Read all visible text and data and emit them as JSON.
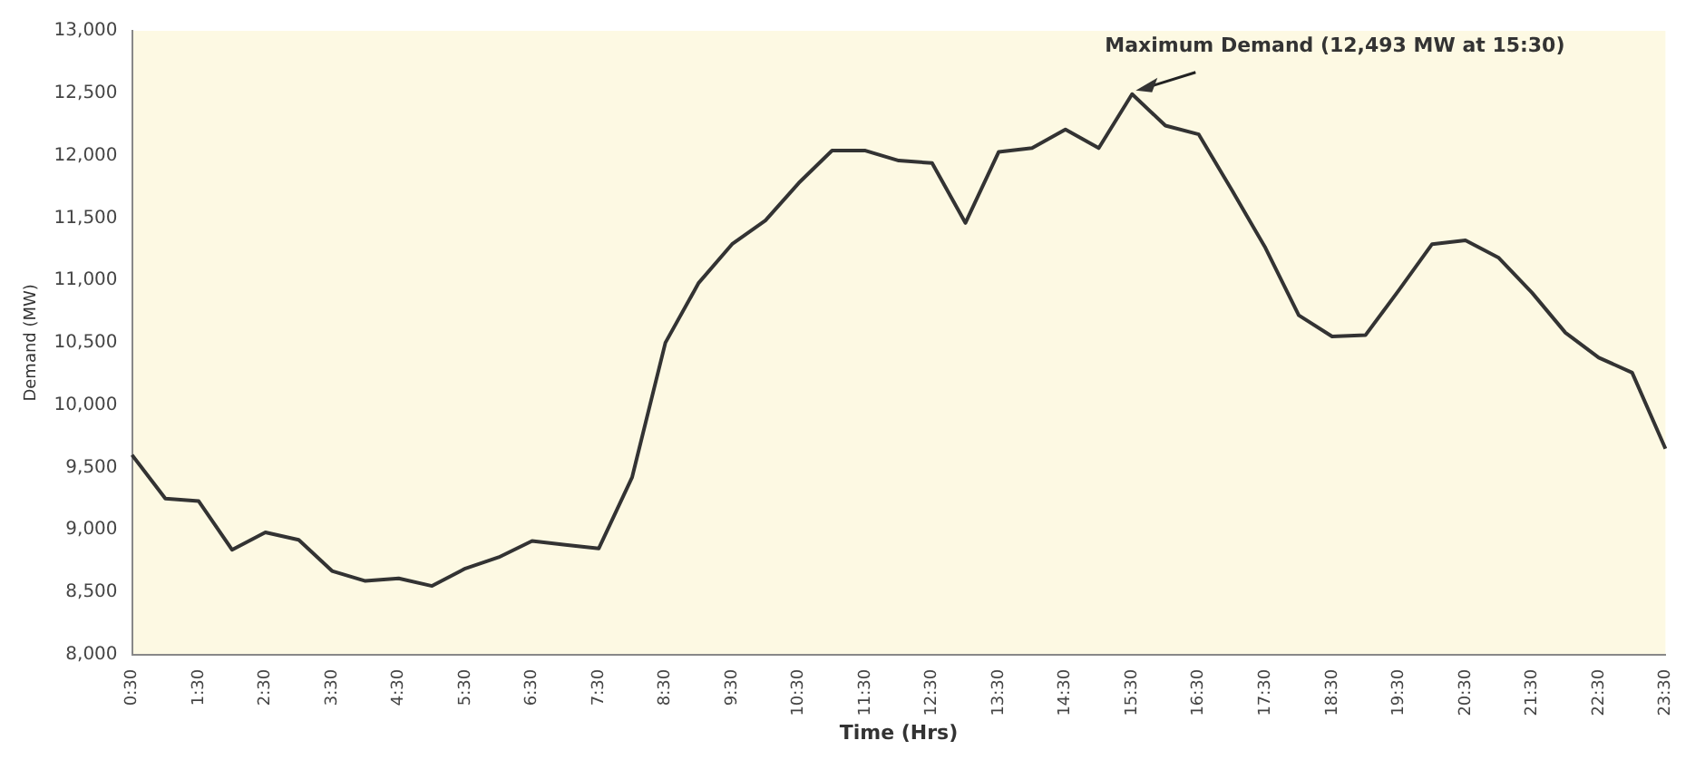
{
  "chart_data": {
    "type": "line",
    "xlabel": "Time (Hrs)",
    "ylabel": "Demand (MW)",
    "categories": [
      "0:30",
      null,
      "1:30",
      null,
      "2:30",
      null,
      "3:30",
      null,
      "4:30",
      null,
      "5:30",
      null,
      "6:30",
      null,
      "7:30",
      null,
      "8:30",
      null,
      "9:30",
      null,
      "10:30",
      null,
      "11:30",
      null,
      "12:30",
      null,
      "13:30",
      null,
      "14:30",
      null,
      "15:30",
      null,
      "16:30",
      null,
      "17:30",
      null,
      "18:30",
      null,
      "19:30",
      null,
      "20:30",
      null,
      "21:30",
      null,
      "22:30",
      null,
      "23:30"
    ],
    "series": [
      {
        "color": "#333333",
        "values": [
          9600,
          9250,
          9230,
          8840,
          8980,
          8920,
          8670,
          8590,
          8610,
          8550,
          8690,
          8780,
          8910,
          8880,
          8850,
          9420,
          10500,
          10980,
          11290,
          11480,
          11780,
          12040,
          12040,
          11960,
          11940,
          11460,
          12030,
          12060,
          12210,
          12060,
          12493,
          12240,
          12170,
          11720,
          11260,
          10720,
          10550,
          10560,
          10920,
          11290,
          11320,
          11180,
          10900,
          10580,
          10380,
          10260,
          9650
        ]
      }
    ],
    "ylim": [
      8000,
      13000
    ],
    "yticks": [
      {
        "value": 8000,
        "label": "8,000"
      },
      {
        "value": 8500,
        "label": "8,500"
      },
      {
        "value": 9000,
        "label": "9,000"
      },
      {
        "value": 9500,
        "label": "9,500"
      },
      {
        "value": 10000,
        "label": "10,000"
      },
      {
        "value": 10500,
        "label": "10,500"
      },
      {
        "value": 11000,
        "label": "11,000"
      },
      {
        "value": 11500,
        "label": "11,500"
      },
      {
        "value": 12000,
        "label": "12,000"
      },
      {
        "value": 12500,
        "label": "12,500"
      },
      {
        "value": 13000,
        "label": "13,000"
      }
    ],
    "annotations": [
      {
        "text": "Maximum Demand (12,493 MW at 15:30)",
        "x": "15:30",
        "y": 12493
      }
    ],
    "grid": false,
    "legend": false,
    "marker": "none",
    "line_style": "solid"
  }
}
